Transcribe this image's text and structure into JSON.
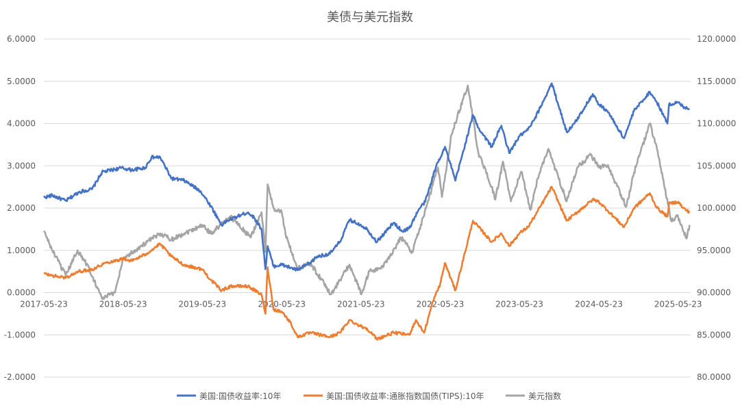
{
  "chart_data": {
    "type": "line",
    "title": "美债与美元指数",
    "grid": true,
    "legend_position": "bottom",
    "x_ticks": [
      "2017-05-23",
      "2018-05-23",
      "2019-05-23",
      "2020-05-23",
      "2021-05-23",
      "2022-05-23",
      "2023-05-23",
      "2024-05-23",
      "2025-05-23"
    ],
    "y_left": {
      "range": [
        -2,
        6
      ],
      "ticks": [
        "-2.0000",
        "-1.0000",
        "0.0000",
        "1.0000",
        "2.0000",
        "3.0000",
        "4.0000",
        "5.0000",
        "6.0000"
      ]
    },
    "y_right": {
      "range": [
        80,
        120
      ],
      "ticks": [
        "80.0000",
        "85.0000",
        "90.0000",
        "95.0000",
        "100.0000",
        "105.0000",
        "110.0000",
        "115.0000",
        "120.0000"
      ]
    },
    "series": [
      {
        "name": "美国:国债收益率:10年",
        "axis": "left",
        "color": "#4472C4",
        "x": [
          "2017-05-23",
          "2017-07-01",
          "2017-09-01",
          "2017-11-01",
          "2018-01-01",
          "2018-02-15",
          "2018-05-15",
          "2018-07-01",
          "2018-09-01",
          "2018-10-01",
          "2018-11-10",
          "2019-01-01",
          "2019-03-01",
          "2019-05-15",
          "2019-07-01",
          "2019-08-20",
          "2019-09-15",
          "2019-11-01",
          "2019-12-20",
          "2020-01-20",
          "2020-02-20",
          "2020-03-09",
          "2020-03-19",
          "2020-04-15",
          "2020-05-23",
          "2020-08-04",
          "2020-10-01",
          "2020-11-01",
          "2020-12-31",
          "2021-02-15",
          "2021-03-31",
          "2021-05-23",
          "2021-06-20",
          "2021-08-04",
          "2021-10-20",
          "2021-12-01",
          "2021-12-31",
          "2022-02-15",
          "2022-03-15",
          "2022-05-05",
          "2022-06-14",
          "2022-08-01",
          "2022-10-21",
          "2022-11-15",
          "2023-01-15",
          "2023-03-01",
          "2023-04-06",
          "2023-05-23",
          "2023-07-01",
          "2023-08-01",
          "2023-10-19",
          "2023-12-27",
          "2024-02-01",
          "2024-04-25",
          "2024-05-23",
          "2024-07-01",
          "2024-09-16",
          "2024-11-01",
          "2025-01-13",
          "2025-02-15",
          "2025-04-04",
          "2025-04-11",
          "2025-05-23",
          "2025-06-15",
          "2025-07-15"
        ],
        "values": [
          2.25,
          2.3,
          2.17,
          2.38,
          2.45,
          2.85,
          2.95,
          2.9,
          2.95,
          3.2,
          3.2,
          2.7,
          2.65,
          2.4,
          2.05,
          1.6,
          1.7,
          1.8,
          1.9,
          1.75,
          1.5,
          0.55,
          1.1,
          0.62,
          0.66,
          0.53,
          0.7,
          0.85,
          0.92,
          1.2,
          1.72,
          1.6,
          1.5,
          1.2,
          1.65,
          1.45,
          1.52,
          1.98,
          2.15,
          3.0,
          3.45,
          2.65,
          4.2,
          3.9,
          3.45,
          3.95,
          3.3,
          3.7,
          3.85,
          4.1,
          4.95,
          3.8,
          4.0,
          4.7,
          4.45,
          4.3,
          3.65,
          4.3,
          4.75,
          4.5,
          4.0,
          4.45,
          4.5,
          4.4,
          4.35
        ]
      },
      {
        "name": "美国:国债收益率:通胀指数国债(TIPS):10年",
        "axis": "left",
        "color": "#ED7D31",
        "x": [
          "2017-05-23",
          "2017-07-01",
          "2017-09-01",
          "2017-11-01",
          "2018-01-01",
          "2018-03-01",
          "2018-05-23",
          "2018-07-01",
          "2018-09-01",
          "2018-11-10",
          "2019-01-01",
          "2019-03-01",
          "2019-05-23",
          "2019-07-01",
          "2019-08-20",
          "2019-10-01",
          "2019-12-20",
          "2020-02-20",
          "2020-03-09",
          "2020-03-19",
          "2020-04-15",
          "2020-05-23",
          "2020-07-01",
          "2020-08-04",
          "2020-10-01",
          "2020-12-31",
          "2021-02-15",
          "2021-03-31",
          "2021-05-23",
          "2021-06-20",
          "2021-08-04",
          "2021-10-20",
          "2021-12-31",
          "2022-01-31",
          "2022-03-10",
          "2022-04-20",
          "2022-05-23",
          "2022-06-14",
          "2022-08-01",
          "2022-10-21",
          "2023-01-15",
          "2023-03-01",
          "2023-04-06",
          "2023-05-23",
          "2023-07-01",
          "2023-08-01",
          "2023-10-19",
          "2023-12-27",
          "2024-02-01",
          "2024-04-25",
          "2024-05-23",
          "2024-07-01",
          "2024-09-16",
          "2024-11-01",
          "2025-01-13",
          "2025-02-15",
          "2025-04-04",
          "2025-04-11",
          "2025-05-23",
          "2025-06-15",
          "2025-07-15"
        ],
        "values": [
          0.45,
          0.4,
          0.35,
          0.5,
          0.55,
          0.7,
          0.8,
          0.75,
          0.9,
          1.15,
          0.85,
          0.65,
          0.55,
          0.3,
          0.05,
          0.15,
          0.15,
          -0.05,
          -0.5,
          0.6,
          -0.4,
          -0.45,
          -0.7,
          -1.05,
          -0.95,
          -1.05,
          -0.95,
          -0.65,
          -0.8,
          -0.85,
          -1.1,
          -0.95,
          -1.0,
          -0.65,
          -0.95,
          -0.2,
          0.2,
          0.7,
          0.05,
          1.7,
          1.2,
          1.4,
          1.1,
          1.4,
          1.55,
          1.8,
          2.5,
          1.7,
          1.85,
          2.2,
          2.15,
          1.95,
          1.55,
          2.0,
          2.35,
          2.0,
          1.8,
          2.1,
          2.15,
          2.0,
          1.9
        ]
      },
      {
        "name": "美元指数",
        "axis": "right",
        "color": "#A5A5A5",
        "x": [
          "2017-05-23",
          "2017-07-01",
          "2017-09-01",
          "2017-10-25",
          "2017-12-15",
          "2018-02-15",
          "2018-04-15",
          "2018-05-23",
          "2018-08-15",
          "2018-11-10",
          "2019-01-01",
          "2019-03-01",
          "2019-05-23",
          "2019-07-01",
          "2019-10-01",
          "2019-12-31",
          "2020-02-20",
          "2020-03-09",
          "2020-03-19",
          "2020-04-15",
          "2020-05-23",
          "2020-06-10",
          "2020-08-04",
          "2020-10-01",
          "2021-01-06",
          "2021-03-31",
          "2021-05-25",
          "2021-07-01",
          "2021-09-01",
          "2021-11-24",
          "2022-01-14",
          "2022-03-07",
          "2022-05-13",
          "2022-05-31",
          "2022-07-14",
          "2022-09-27",
          "2022-11-15",
          "2023-01-15",
          "2023-02-01",
          "2023-03-08",
          "2023-04-14",
          "2023-05-31",
          "2023-07-13",
          "2023-08-15",
          "2023-10-03",
          "2023-12-27",
          "2024-02-14",
          "2024-04-16",
          "2024-05-23",
          "2024-07-01",
          "2024-09-27",
          "2024-11-01",
          "2025-01-13",
          "2025-02-15",
          "2025-04-21",
          "2025-05-23",
          "2025-06-30",
          "2025-07-15"
        ],
        "values": [
          97.3,
          95.0,
          92.0,
          95.0,
          93.0,
          89.3,
          90.0,
          94.0,
          95.5,
          97.0,
          96.3,
          97.0,
          98.0,
          97.0,
          99.0,
          96.5,
          99.5,
          94.8,
          102.8,
          100.0,
          99.5,
          96.8,
          92.8,
          93.5,
          89.8,
          93.3,
          89.8,
          92.5,
          93.0,
          96.5,
          94.8,
          99.0,
          104.8,
          101.3,
          108.7,
          114.5,
          106.5,
          102.5,
          101.0,
          105.5,
          100.8,
          104.3,
          99.8,
          103.5,
          107.0,
          100.8,
          104.8,
          106.3,
          104.8,
          105.0,
          100.2,
          104.2,
          110.0,
          107.0,
          98.5,
          99.0,
          96.4,
          98.0
        ]
      }
    ]
  }
}
